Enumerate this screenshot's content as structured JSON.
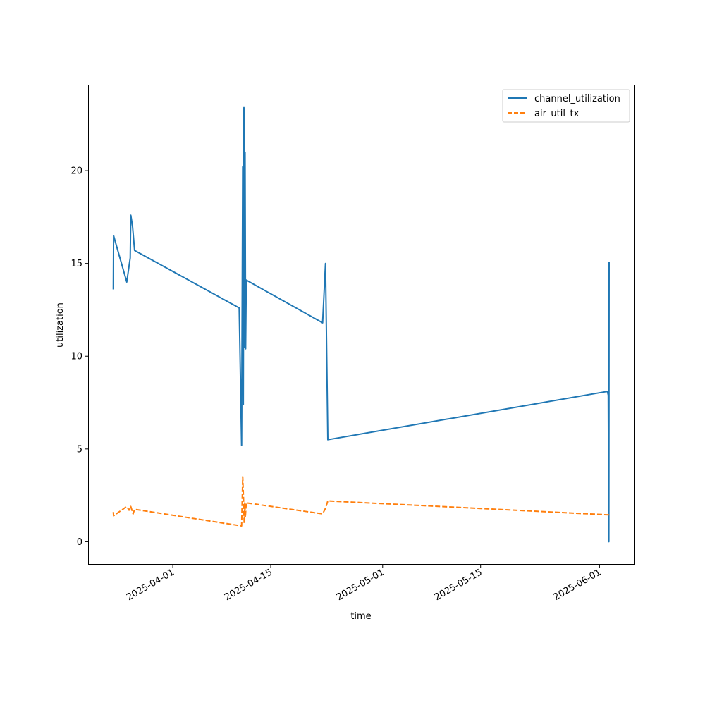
{
  "chart_data": {
    "type": "line",
    "xlabel": "time",
    "ylabel": "utilization",
    "xlim": [
      "2025-03-20",
      "2025-06-06"
    ],
    "ylim": [
      -1.2,
      24.6
    ],
    "x_ticks": [
      "2025-04-01",
      "2025-04-15",
      "2025-05-01",
      "2025-05-15",
      "2025-06-01"
    ],
    "y_ticks": [
      0,
      5,
      10,
      15,
      20
    ],
    "grid": false,
    "legend_position": "top-right",
    "series": [
      {
        "name": "channel_utilization",
        "color": "#1f77b4",
        "dash": "solid",
        "points": [
          [
            "2025-03-23T12:00",
            13.6
          ],
          [
            "2025-03-23T13:00",
            16.5
          ],
          [
            "2025-03-25T10:00",
            14.0
          ],
          [
            "2025-03-25T22:00",
            15.3
          ],
          [
            "2025-03-26T00:00",
            17.6
          ],
          [
            "2025-03-26T06:00",
            17.0
          ],
          [
            "2025-03-26T13:00",
            15.7
          ],
          [
            "2025-04-10T12:00",
            12.6
          ],
          [
            "2025-04-10T20:00",
            5.2
          ],
          [
            "2025-04-11T00:00",
            20.2
          ],
          [
            "2025-04-11T02:00",
            7.4
          ],
          [
            "2025-04-11T04:00",
            23.4
          ],
          [
            "2025-04-11T06:00",
            10.5
          ],
          [
            "2025-04-11T08:00",
            21.0
          ],
          [
            "2025-04-11T10:00",
            10.4
          ],
          [
            "2025-04-11T12:00",
            14.1
          ],
          [
            "2025-04-22T10:00",
            11.8
          ],
          [
            "2025-04-22T20:00",
            15.0
          ],
          [
            "2025-04-23T04:00",
            5.5
          ],
          [
            "2025-06-02T03:00",
            8.1
          ],
          [
            "2025-06-02T06:00",
            7.9
          ],
          [
            "2025-06-02T08:00",
            0.0
          ],
          [
            "2025-06-02T09:00",
            15.1
          ]
        ]
      },
      {
        "name": "air_util_tx",
        "color": "#ff7f0e",
        "dash": "dashed",
        "points": [
          [
            "2025-03-23T12:00",
            1.6
          ],
          [
            "2025-03-23T13:00",
            1.4
          ],
          [
            "2025-03-25T10:00",
            1.9
          ],
          [
            "2025-03-25T18:00",
            1.7
          ],
          [
            "2025-03-26T00:00",
            1.9
          ],
          [
            "2025-03-26T08:00",
            1.5
          ],
          [
            "2025-03-26T13:00",
            1.75
          ],
          [
            "2025-04-10T20:00",
            0.85
          ],
          [
            "2025-04-11T00:00",
            3.5
          ],
          [
            "2025-04-11T03:00",
            2.2
          ],
          [
            "2025-04-11T05:00",
            1.0
          ],
          [
            "2025-04-11T07:00",
            2.1
          ],
          [
            "2025-04-11T09:00",
            1.3
          ],
          [
            "2025-04-11T12:00",
            2.1
          ],
          [
            "2025-04-22T10:00",
            1.5
          ],
          [
            "2025-04-22T20:00",
            1.8
          ],
          [
            "2025-04-23T04:00",
            2.2
          ],
          [
            "2025-06-02T09:00",
            1.45
          ]
        ]
      }
    ]
  }
}
